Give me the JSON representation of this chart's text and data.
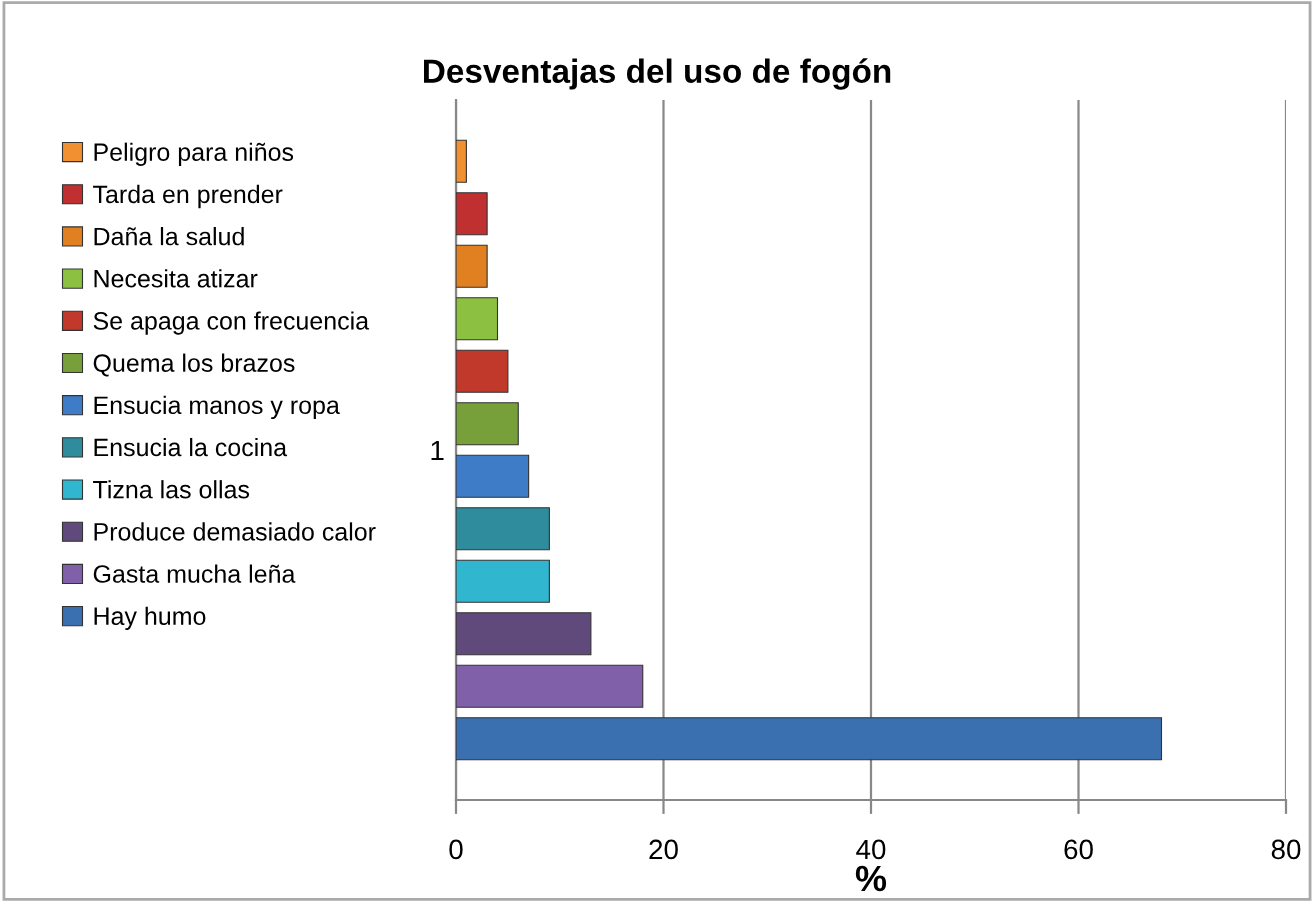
{
  "chart_data": {
    "type": "bar",
    "orientation": "horizontal",
    "title": "Desventajas del uso de fogón",
    "xlabel": "%",
    "categories": [
      "1"
    ],
    "series": [
      {
        "name": "Hay humo",
        "color": "#3a6fb0",
        "values": [
          68
        ]
      },
      {
        "name": "Gasta mucha leña",
        "color": "#8060a8",
        "values": [
          18
        ]
      },
      {
        "name": "Produce demasiado calor",
        "color": "#604a7b",
        "values": [
          13
        ]
      },
      {
        "name": "Tizna las ollas",
        "color": "#31b6d0",
        "values": [
          9
        ]
      },
      {
        "name": "Ensucia la cocina",
        "color": "#2f8c9c",
        "values": [
          9
        ]
      },
      {
        "name": "Ensucia manos y ropa",
        "color": "#3e7cc8",
        "values": [
          7
        ]
      },
      {
        "name": "Quema los brazos",
        "color": "#77a03a",
        "values": [
          6
        ]
      },
      {
        "name": "Se apaga con frecuencia",
        "color": "#c0392b",
        "values": [
          5
        ]
      },
      {
        "name": "Necesita atizar",
        "color": "#8cc040",
        "values": [
          4
        ]
      },
      {
        "name": "Daña la salud",
        "color": "#e08020",
        "values": [
          3
        ]
      },
      {
        "name": "Tarda en prender",
        "color": "#c03030",
        "values": [
          3
        ]
      },
      {
        "name": "Peligro para niños",
        "color": "#f09030",
        "values": [
          1
        ]
      }
    ],
    "xlim": [
      0,
      80
    ],
    "xticks": [
      0,
      20,
      40,
      60,
      80
    ],
    "grid": "x",
    "legend": "left"
  }
}
